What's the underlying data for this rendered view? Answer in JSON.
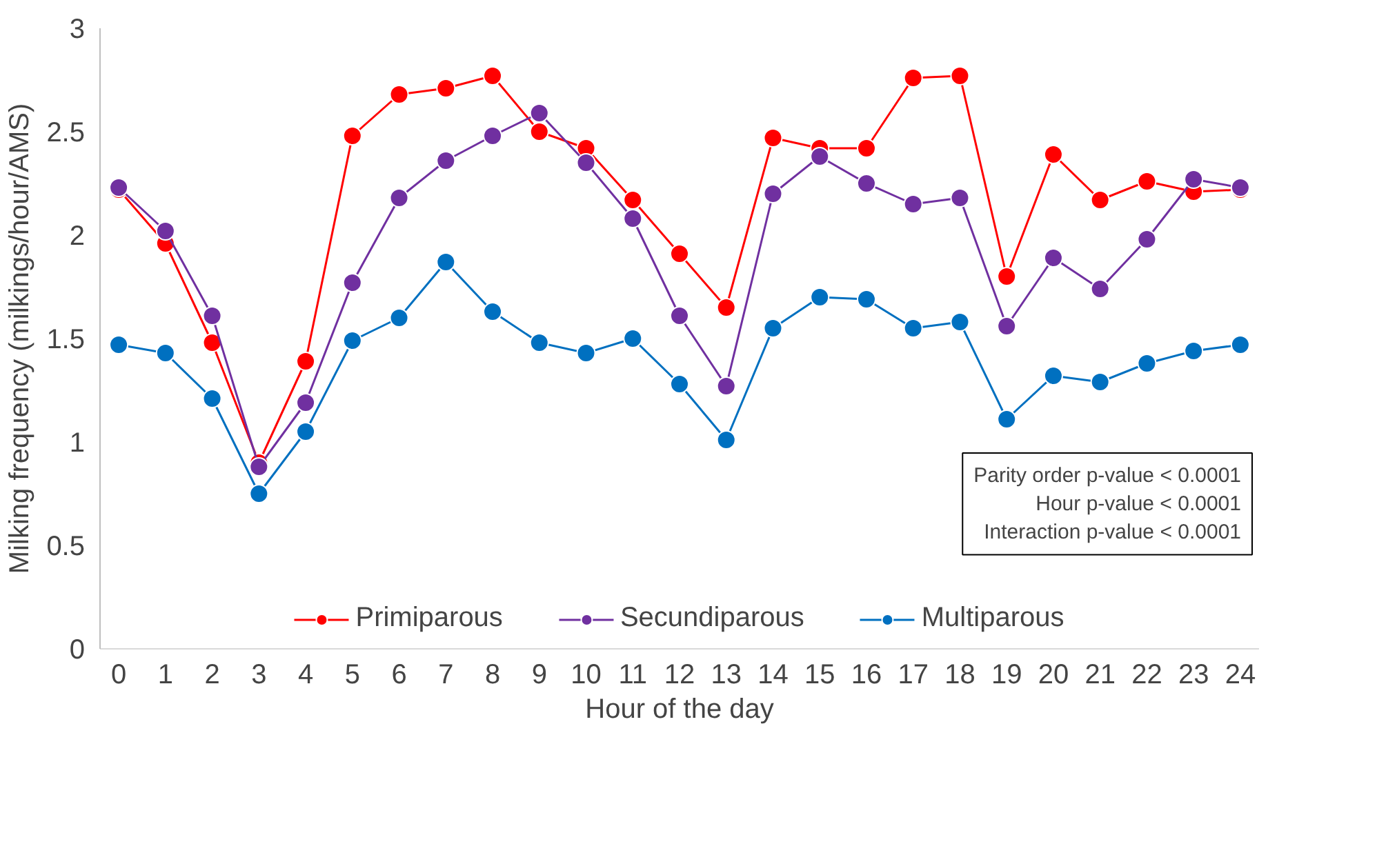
{
  "chart_data": {
    "type": "line",
    "xlabel": "Hour of the day",
    "ylabel": "Milking frequency (milkings/hour/AMS)",
    "x": [
      0,
      1,
      2,
      3,
      4,
      5,
      6,
      7,
      8,
      9,
      10,
      11,
      12,
      13,
      14,
      15,
      16,
      17,
      18,
      19,
      20,
      21,
      22,
      23,
      24
    ],
    "series": [
      {
        "name": "Primiparous",
        "color": "#ff0000",
        "values": [
          2.22,
          1.96,
          1.48,
          0.9,
          1.39,
          2.48,
          2.68,
          2.71,
          2.77,
          2.5,
          2.42,
          2.17,
          1.91,
          1.65,
          2.47,
          2.42,
          2.42,
          2.76,
          2.77,
          1.8,
          2.39,
          2.17,
          2.26,
          2.21,
          2.22
        ]
      },
      {
        "name": "Secundiparous",
        "color": "#7030a0",
        "values": [
          2.23,
          2.02,
          1.61,
          0.88,
          1.19,
          1.77,
          2.18,
          2.36,
          2.48,
          2.59,
          2.35,
          2.08,
          1.61,
          1.27,
          2.2,
          2.38,
          2.25,
          2.15,
          2.18,
          1.56,
          1.89,
          1.74,
          1.98,
          2.27,
          2.23
        ]
      },
      {
        "name": "Multiparous",
        "color": "#0070c0",
        "values": [
          1.47,
          1.43,
          1.21,
          0.75,
          1.05,
          1.49,
          1.6,
          1.87,
          1.63,
          1.48,
          1.43,
          1.5,
          1.28,
          1.01,
          1.55,
          1.7,
          1.69,
          1.55,
          1.58,
          1.11,
          1.32,
          1.29,
          1.38,
          1.44,
          1.47
        ]
      }
    ],
    "xlim": [
      -0.4,
      24.4
    ],
    "xticks": [
      0,
      1,
      2,
      3,
      4,
      5,
      6,
      7,
      8,
      9,
      10,
      11,
      12,
      13,
      14,
      15,
      16,
      17,
      18,
      19,
      20,
      21,
      22,
      23,
      24
    ],
    "ylim": [
      0,
      3
    ],
    "yticks": [
      0,
      {
        "value": 0.5,
        "label": "0.5"
      },
      1,
      {
        "value": 1.5,
        "label": "1.5"
      },
      2,
      {
        "value": 2.5,
        "label": "2.5"
      },
      3
    ],
    "grid": false,
    "legend": "bottom",
    "marker": "circle",
    "line_style": "solid",
    "annotations": [
      "Parity order p-value < 0.0001",
      "Hour p-value < 0.0001",
      "Interaction p-value < 0.0001"
    ]
  }
}
